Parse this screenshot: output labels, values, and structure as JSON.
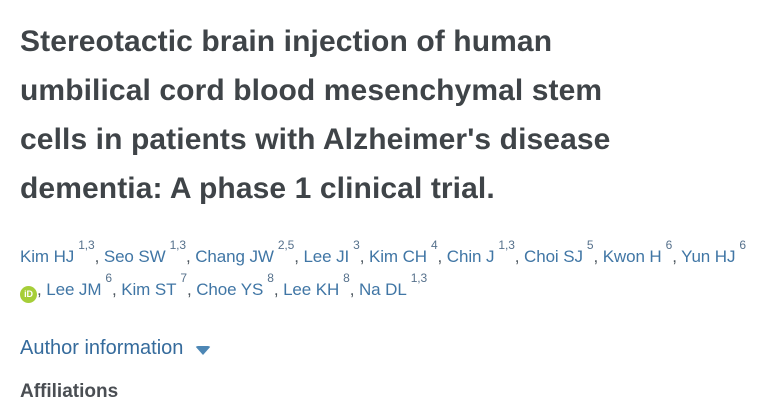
{
  "article": {
    "title_lines": [
      "Stereotactic brain injection of human",
      "umbilical cord blood mesenchymal stem",
      "cells in patients with Alzheimer's disease",
      "dementia: A phase 1 clinical trial."
    ]
  },
  "authors": {
    "separator": ", ",
    "orcid_icon_text": "iD",
    "items": [
      {
        "name": "Kim HJ",
        "sup": "1,3"
      },
      {
        "name": "Seo SW",
        "sup": "1,3"
      },
      {
        "name": "Chang JW",
        "sup": "2,5"
      },
      {
        "name": "Lee JI",
        "sup": "3"
      },
      {
        "name": "Kim CH",
        "sup": "4"
      },
      {
        "name": "Chin J",
        "sup": "1,3"
      },
      {
        "name": "Choi SJ",
        "sup": "5"
      },
      {
        "name": "Kwon H",
        "sup": "6"
      },
      {
        "name": "Yun HJ",
        "sup": "6",
        "has_orcid": true
      },
      {
        "name": "Lee JM",
        "sup": "6"
      },
      {
        "name": "Kim ST",
        "sup": "7"
      },
      {
        "name": "Choe YS",
        "sup": "8"
      },
      {
        "name": "Lee KH",
        "sup": "8"
      },
      {
        "name": "Na DL",
        "sup": "1,3"
      }
    ]
  },
  "author_information": {
    "label": "Author information",
    "expander_icon": "chevron-down"
  },
  "affiliations": {
    "heading": "Affiliations"
  },
  "colors": {
    "background": "#ffffff",
    "title_text": "#3f4448",
    "author_link": "#4076a5",
    "superscript": "#56718c",
    "separator_text": "#4c565e",
    "section_link": "#356b9c",
    "chevron": "#4d87b5",
    "heading_text": "#4a4e53",
    "orcid_green": "#a6ce39"
  }
}
